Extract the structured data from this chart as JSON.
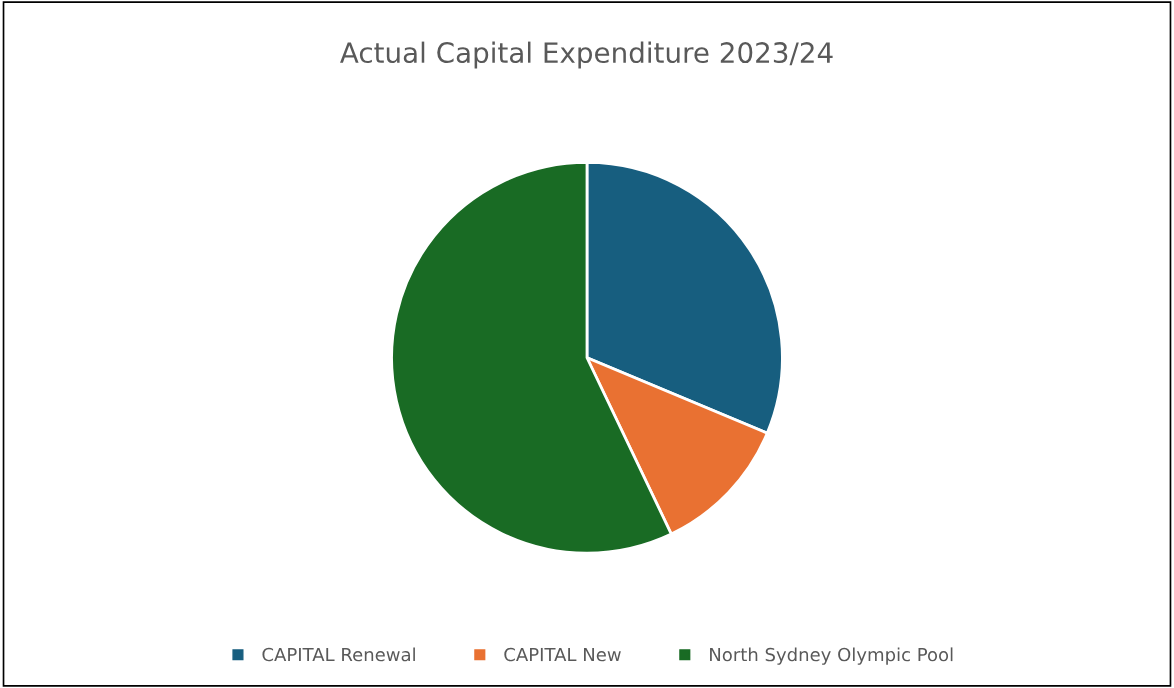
{
  "chart_data": {
    "type": "pie",
    "title": "Actual Capital Expenditure 2023/24",
    "categories": [
      "CAPITAL Renewal",
      "CAPITAL New",
      "North Sydney Olympic Pool"
    ],
    "values": [
      31.3,
      11.6,
      57.1
    ],
    "colors": [
      "#175e7f",
      "#e97132",
      "#196b24"
    ],
    "legend": "bottom"
  }
}
